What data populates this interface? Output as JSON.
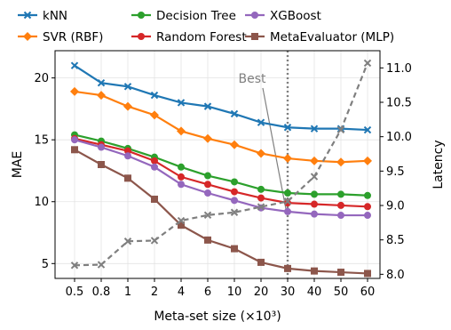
{
  "chart_data": {
    "type": "line",
    "title": "",
    "xlabel": "Meta-set size (×10³)",
    "ylabel": "MAE",
    "ylabel_right": "Latency",
    "x_categories": [
      "0.5",
      "0.8",
      "1",
      "2",
      "4",
      "6",
      "10",
      "20",
      "30",
      "40",
      "50",
      "60"
    ],
    "ylim": [
      3.8,
      22.2
    ],
    "ylim_right": [
      7.94,
      11.25
    ],
    "yticks": [
      5,
      10,
      15,
      20
    ],
    "yticks_right": [
      8.0,
      8.5,
      9.0,
      9.5,
      10.0,
      10.5,
      11.0
    ],
    "yticks_right_labels": [
      "8.0",
      "8.5",
      "9.0",
      "9.5",
      "10.0",
      "10.5",
      "11.0"
    ],
    "grid": true,
    "legend_position": "top",
    "series": [
      {
        "name": "kNN",
        "color": "#1f77b4",
        "marker": "x",
        "axis": "left",
        "values": [
          21.0,
          19.6,
          19.3,
          18.6,
          18.0,
          17.7,
          17.1,
          16.4,
          16.0,
          15.9,
          15.9,
          15.8
        ]
      },
      {
        "name": "SVR (RBF)",
        "color": "#ff7f0e",
        "marker": "D",
        "axis": "left",
        "values": [
          18.9,
          18.6,
          17.7,
          17.0,
          15.7,
          15.1,
          14.6,
          13.9,
          13.5,
          13.3,
          13.2,
          13.3
        ]
      },
      {
        "name": "Decision Tree",
        "color": "#2ca02c",
        "marker": "o",
        "axis": "left",
        "values": [
          15.4,
          14.9,
          14.3,
          13.6,
          12.8,
          12.1,
          11.6,
          11.0,
          10.7,
          10.6,
          10.6,
          10.5
        ]
      },
      {
        "name": "Random Forest",
        "color": "#d62728",
        "marker": "o",
        "axis": "left",
        "values": [
          15.1,
          14.6,
          14.1,
          13.3,
          12.0,
          11.4,
          10.8,
          10.3,
          9.9,
          9.8,
          9.7,
          9.6
        ]
      },
      {
        "name": "XGBoost",
        "color": "#9467bd",
        "marker": "o",
        "axis": "left",
        "values": [
          15.0,
          14.4,
          13.7,
          12.8,
          11.4,
          10.7,
          10.1,
          9.5,
          9.2,
          9.0,
          8.9,
          8.9
        ]
      },
      {
        "name": "MetaEvaluator (MLP)",
        "color": "#8c564b",
        "marker": "s",
        "axis": "left",
        "values": [
          14.2,
          13.0,
          11.9,
          10.2,
          8.1,
          6.9,
          6.2,
          5.1,
          4.6,
          4.4,
          4.3,
          4.2
        ]
      },
      {
        "name": "",
        "color": "#7f7f7f",
        "marker": "x",
        "dashed": true,
        "axis": "right",
        "values": [
          8.13,
          8.14,
          8.48,
          8.49,
          8.78,
          8.86,
          8.9,
          8.98,
          9.06,
          9.42,
          10.1,
          11.07
        ]
      }
    ],
    "annotations": [
      {
        "text": "Best",
        "x_category": "30",
        "y_right": 10.85,
        "arrow_to_y_right": 8.95,
        "vline_at": "30",
        "vline_style": "dotted",
        "color": "#808080"
      }
    ]
  }
}
